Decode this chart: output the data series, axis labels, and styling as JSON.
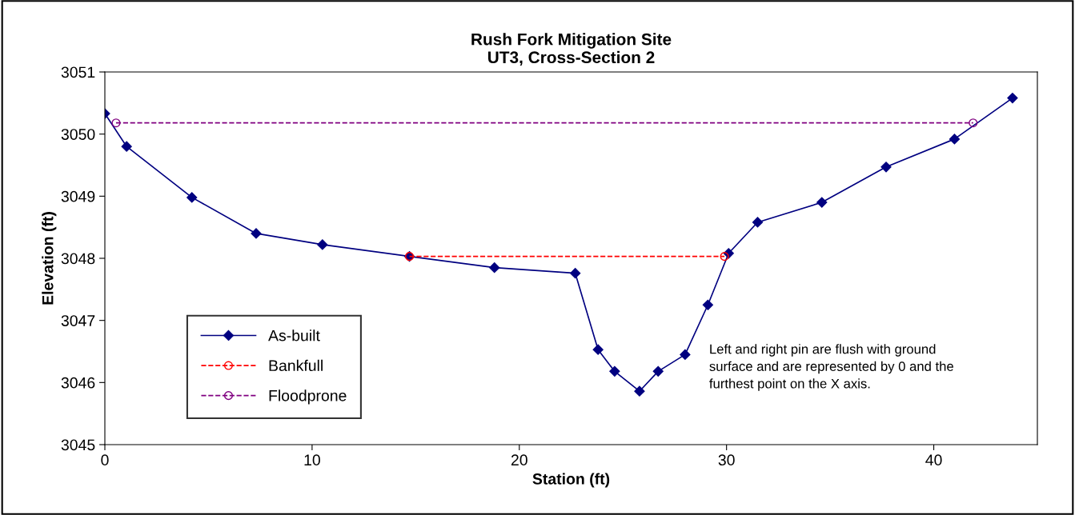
{
  "chart_data": {
    "type": "line",
    "title": "Rush Fork Mitigation Site\nUT3, Cross-Section 2",
    "xlabel": "Station (ft)",
    "ylabel": "Elevation (ft)",
    "xlim": [
      0,
      45
    ],
    "xticks": [
      0,
      10,
      20,
      30,
      40
    ],
    "ylim": [
      3045,
      3051
    ],
    "yticks": [
      3045,
      3046,
      3047,
      3048,
      3049,
      3050,
      3051
    ],
    "grid": false,
    "legend": "bottom left",
    "series": [
      {
        "name": "As-built",
        "color": "#000080",
        "marker": "diamond",
        "line_style": "solid",
        "x": [
          0,
          1.05,
          4.2,
          7.3,
          10.5,
          14.7,
          18.8,
          22.7,
          23.8,
          24.6,
          25.8,
          26.7,
          28.0,
          29.1,
          30.1,
          31.5,
          34.6,
          37.7,
          41.0,
          43.8
        ],
        "values": [
          3050.33,
          3049.8,
          3048.98,
          3048.4,
          3048.22,
          3048.03,
          3047.85,
          3047.76,
          3046.53,
          3046.18,
          3045.86,
          3046.18,
          3046.45,
          3047.25,
          3048.08,
          3048.58,
          3048.9,
          3049.47,
          3049.92,
          3050.58
        ]
      },
      {
        "name": "Bankfull",
        "color": "#ff0000",
        "marker": "circle",
        "line_style": "dashed",
        "x": [
          14.7,
          29.9
        ],
        "values": [
          3048.03,
          3048.03
        ]
      },
      {
        "name": "Floodprone",
        "color": "#800080",
        "marker": "circle",
        "line_style": "dashed",
        "x": [
          0.54,
          41.9
        ],
        "values": [
          3050.18,
          3050.18
        ]
      }
    ],
    "annotations": [
      {
        "text": "Left and right pin are flush with ground\nsurface and are represented by 0 and the\nfurthest point on the X axis."
      }
    ]
  }
}
